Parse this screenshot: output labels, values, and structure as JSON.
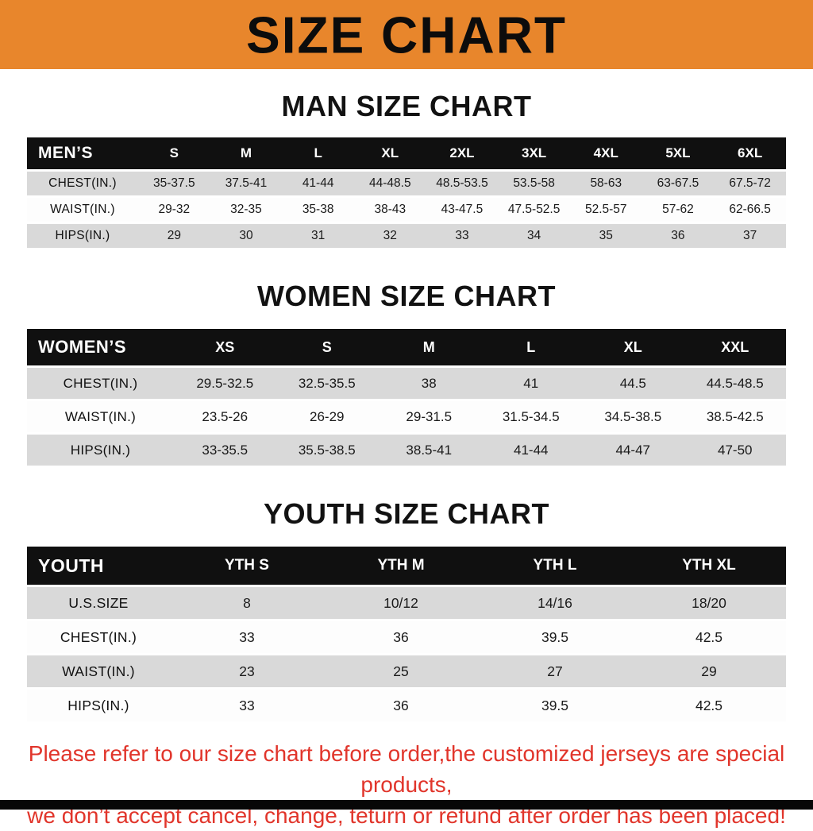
{
  "header": {
    "title": "SIZE CHART"
  },
  "colors": {
    "banner_orange": "#E8862C",
    "header_black": "#101010",
    "row_gray": "#D9D9D9",
    "notice_red": "#E1352B"
  },
  "charts": [
    {
      "title": "MAN SIZE CHART",
      "corner_label": "MEN’S",
      "columns": [
        "S",
        "M",
        "L",
        "XL",
        "2XL",
        "3XL",
        "4XL",
        "5XL",
        "6XL"
      ],
      "rows": [
        {
          "label": "CHEST(IN.)",
          "values": [
            "35-37.5",
            "37.5-41",
            "41-44",
            "44-48.5",
            "48.5-53.5",
            "53.5-58",
            "58-63",
            "63-67.5",
            "67.5-72"
          ]
        },
        {
          "label": "WAIST(IN.)",
          "values": [
            "29-32",
            "32-35",
            "35-38",
            "38-43",
            "43-47.5",
            "47.5-52.5",
            "52.5-57",
            "57-62",
            "62-66.5"
          ]
        },
        {
          "label": "HIPS(IN.)",
          "values": [
            "29",
            "30",
            "31",
            "32",
            "33",
            "34",
            "35",
            "36",
            "37"
          ]
        }
      ]
    },
    {
      "title": "WOMEN SIZE CHART",
      "corner_label": "WOMEN’S",
      "columns": [
        "XS",
        "S",
        "M",
        "L",
        "XL",
        "XXL"
      ],
      "rows": [
        {
          "label": "CHEST(IN.)",
          "values": [
            "29.5-32.5",
            "32.5-35.5",
            "38",
            "41",
            "44.5",
            "44.5-48.5"
          ]
        },
        {
          "label": "WAIST(IN.)",
          "values": [
            "23.5-26",
            "26-29",
            "29-31.5",
            "31.5-34.5",
            "34.5-38.5",
            "38.5-42.5"
          ]
        },
        {
          "label": "HIPS(IN.)",
          "values": [
            "33-35.5",
            "35.5-38.5",
            "38.5-41",
            "41-44",
            "44-47",
            "47-50"
          ]
        }
      ]
    },
    {
      "title": "YOUTH SIZE CHART",
      "corner_label": "YOUTH",
      "columns": [
        "YTH S",
        "YTH M",
        "YTH L",
        "YTH XL"
      ],
      "rows": [
        {
          "label": "U.S.SIZE",
          "values": [
            "8",
            "10/12",
            "14/16",
            "18/20"
          ]
        },
        {
          "label": "CHEST(IN.)",
          "values": [
            "33",
            "36",
            "39.5",
            "42.5"
          ]
        },
        {
          "label": "WAIST(IN.)",
          "values": [
            "23",
            "25",
            "27",
            "29"
          ]
        },
        {
          "label": "HIPS(IN.)",
          "values": [
            "33",
            "36",
            "39.5",
            "42.5"
          ]
        }
      ]
    }
  ],
  "footer": {
    "line1": "Please refer to our size chart before order,the customized jerseys are special products,",
    "line2": "we don’t accept cancel, change, teturn or refund after order has been placed!"
  }
}
